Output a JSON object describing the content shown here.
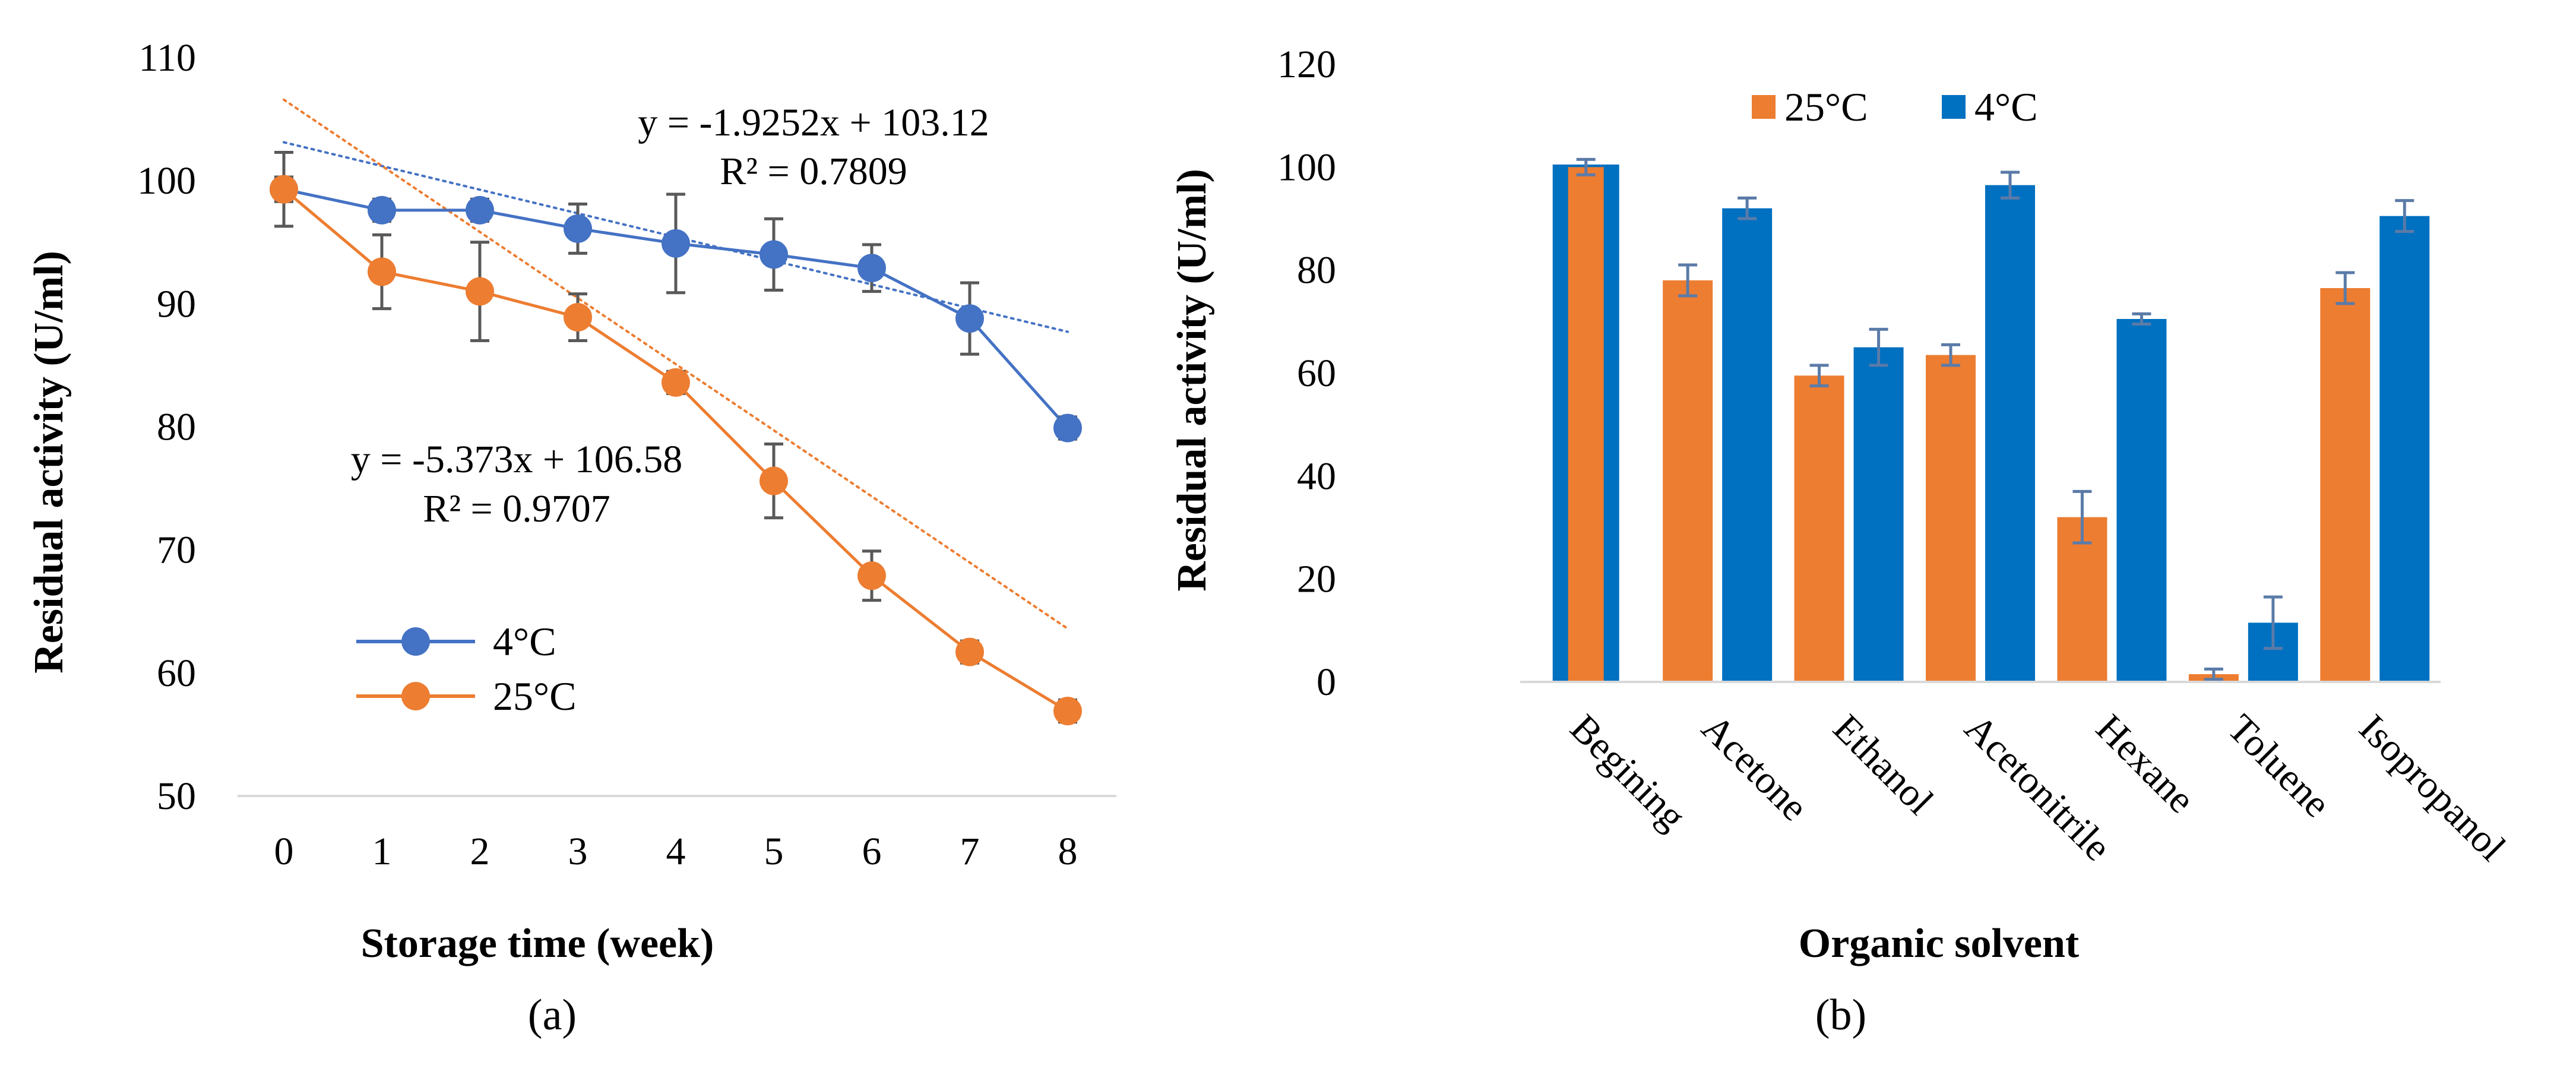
{
  "chart_data": [
    {
      "type": "line",
      "panel_label": "(a)",
      "xlabel": "Storage time (week)",
      "ylabel": "Residual activity (U/ml)",
      "x": [
        0,
        1,
        2,
        3,
        4,
        5,
        6,
        7,
        8
      ],
      "x_ticks": [
        "0",
        "1",
        "2",
        "3",
        "4",
        "5",
        "6",
        "7",
        "8"
      ],
      "ylim": [
        50,
        110
      ],
      "y_ticks": [
        "50",
        "60",
        "70",
        "80",
        "90",
        "100",
        "110"
      ],
      "grid": false,
      "legend_position": "lower-left",
      "series": [
        {
          "name": "4°C",
          "color": "#4472C4",
          "values": [
            99.3,
            97.6,
            97.6,
            96.1,
            94.9,
            94.0,
            92.9,
            88.8,
            79.9
          ],
          "errors": [
            3.0,
            0.9,
            0.9,
            2.0,
            4.0,
            2.9,
            1.9,
            2.9,
            0.9
          ],
          "trendline": {
            "slope": -1.9252,
            "intercept": 103.12,
            "equation": "y = -1.9252x + 103.12",
            "r2": "R² = 0.7809"
          }
        },
        {
          "name": "25°C",
          "color": "#ED7D31",
          "values": [
            99.3,
            92.6,
            91.0,
            88.9,
            83.6,
            75.6,
            67.9,
            61.7,
            56.9
          ],
          "errors": [
            1.0,
            3.0,
            4.0,
            1.9,
            0.9,
            3.0,
            2.0,
            0.9,
            0.9
          ],
          "trendline": {
            "slope": -5.373,
            "intercept": 106.58,
            "equation": "y = -5.373x + 106.58",
            "r2": "R² = 0.9707"
          }
        }
      ]
    },
    {
      "type": "bar",
      "panel_label": "(b)",
      "xlabel": "Organic solvent",
      "ylabel": "Residual activity  (U/ml)",
      "categories": [
        "Begining",
        "Acetone",
        "Ethanol",
        "Acetonitrile",
        "Hexane",
        "Toluene",
        "Isopropanol"
      ],
      "ylim": [
        0,
        120
      ],
      "y_ticks": [
        "0",
        "20",
        "40",
        "60",
        "80",
        "100",
        "120"
      ],
      "grid": false,
      "legend_position": "top",
      "series": [
        {
          "name": "25°C",
          "color": "#ED7D31",
          "values": [
            100,
            78,
            59.5,
            63.5,
            32,
            1.5,
            76.5
          ],
          "errors": [
            1.5,
            3.0,
            2.0,
            2.0,
            5.0,
            1.0,
            3.0
          ]
        },
        {
          "name": "4°C",
          "color": "#0070C0",
          "values": [
            100.5,
            92,
            65,
            96.5,
            70.5,
            11.5,
            90.5
          ],
          "errors": [
            1.5,
            2.0,
            3.5,
            2.5,
            1.0,
            5.0,
            3.0
          ]
        }
      ]
    }
  ]
}
